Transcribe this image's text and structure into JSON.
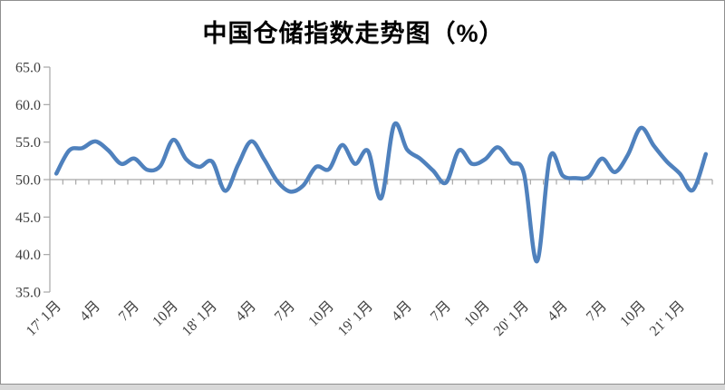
{
  "window": {
    "background": "#ffffff",
    "frame_border_color": "#8f8f8f",
    "bottom_strip_color": "#d8d8d8"
  },
  "chart_data": {
    "type": "line",
    "title": "中国仓储指数走势图（%）",
    "xlabel": "",
    "ylabel": "",
    "ylim": [
      35.0,
      65.0
    ],
    "y_tick_step": 5.0,
    "baseline_value": 50.0,
    "grid": "off",
    "legend": "none",
    "line_color": "#4F81BD",
    "axis_color": "#a6a6a6",
    "tick_label_color": "#3f3f3f",
    "y_tick_labels": [
      "65.0",
      "60.0",
      "55.0",
      "50.0",
      "45.0",
      "40.0",
      "35.0"
    ],
    "x_tick_labels": [
      "17' 1月",
      "4月",
      "7月",
      "10月",
      "18' 1月",
      "4月",
      "7月",
      "10月",
      "19' 1月",
      "4月",
      "7月",
      "10月",
      "20' 1月",
      "4月",
      "7月",
      "10月",
      "21' 1月"
    ],
    "x_tick_label_category_indices": [
      0,
      3,
      6,
      9,
      12,
      15,
      18,
      21,
      24,
      27,
      30,
      33,
      36,
      39,
      42,
      45,
      48
    ],
    "categories": [
      "2017-01",
      "2017-02",
      "2017-03",
      "2017-04",
      "2017-05",
      "2017-06",
      "2017-07",
      "2017-08",
      "2017-09",
      "2017-10",
      "2017-11",
      "2017-12",
      "2018-01",
      "2018-02",
      "2018-03",
      "2018-04",
      "2018-05",
      "2018-06",
      "2018-07",
      "2018-08",
      "2018-09",
      "2018-10",
      "2018-11",
      "2018-12",
      "2019-01",
      "2019-02",
      "2019-03",
      "2019-04",
      "2019-05",
      "2019-06",
      "2019-07",
      "2019-08",
      "2019-09",
      "2019-10",
      "2019-11",
      "2019-12",
      "2020-01",
      "2020-02",
      "2020-03",
      "2020-04",
      "2020-05",
      "2020-06",
      "2020-07",
      "2020-08",
      "2020-09",
      "2020-10",
      "2020-11",
      "2020-12",
      "2021-01",
      "2021-02",
      "2021-03"
    ],
    "series": [
      {
        "name": "中国仓储指数",
        "values": [
          50.8,
          53.9,
          54.2,
          55.1,
          53.9,
          52.1,
          52.8,
          51.3,
          51.8,
          55.3,
          52.7,
          51.7,
          52.4,
          48.5,
          52.0,
          55.1,
          52.7,
          49.8,
          48.4,
          49.2,
          51.7,
          51.4,
          54.6,
          52.1,
          53.8,
          47.5,
          57.3,
          54.0,
          52.8,
          51.2,
          49.6,
          53.9,
          52.1,
          52.7,
          54.3,
          52.3,
          50.8,
          39.1,
          53.0,
          50.5,
          50.2,
          50.4,
          52.8,
          51.0,
          53.3,
          56.9,
          54.5,
          52.4,
          50.8,
          48.6,
          53.4
        ]
      }
    ]
  }
}
